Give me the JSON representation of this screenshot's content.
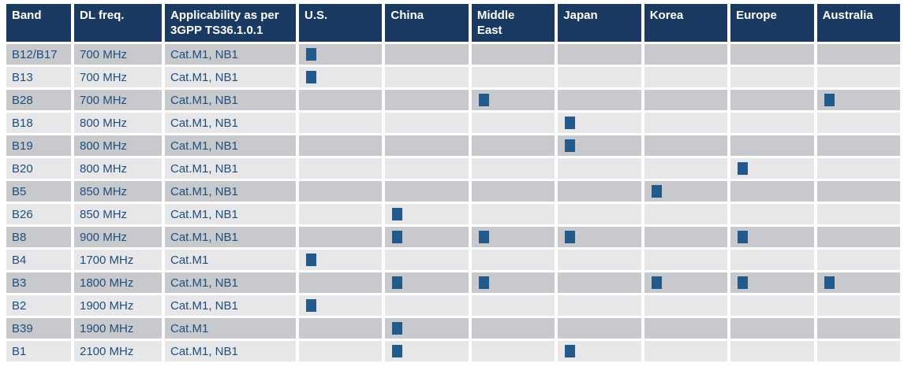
{
  "colors": {
    "header_bg": "#1a3a61",
    "marker": "#235a8c",
    "row_dark": "#c8c9cd",
    "row_light": "#e7e7e9",
    "body_text": "#1f4e7c",
    "page_bg": "#ffffff",
    "header_text": "#ffffff"
  },
  "table": {
    "columns": [
      {
        "key": "band",
        "label": "Band"
      },
      {
        "key": "dl_freq",
        "label": "DL freq."
      },
      {
        "key": "applicability",
        "label": "Applicability as per 3GPP TS36.1.0.1"
      },
      {
        "key": "us",
        "label": "U.S."
      },
      {
        "key": "china",
        "label": "China"
      },
      {
        "key": "middle_east",
        "label": "Middle East"
      },
      {
        "key": "japan",
        "label": "Japan"
      },
      {
        "key": "korea",
        "label": "Korea"
      },
      {
        "key": "europe",
        "label": "Europe"
      },
      {
        "key": "australia",
        "label": "Australia"
      }
    ],
    "region_keys": [
      "us",
      "china",
      "middle_east",
      "japan",
      "korea",
      "europe",
      "australia"
    ],
    "rows": [
      {
        "band": "B12/B17",
        "dl_freq": "700 MHz",
        "applicability": "Cat.M1, NB1",
        "regions": [
          "us"
        ]
      },
      {
        "band": "B13",
        "dl_freq": "700 MHz",
        "applicability": "Cat.M1, NB1",
        "regions": [
          "us"
        ]
      },
      {
        "band": "B28",
        "dl_freq": "700 MHz",
        "applicability": "Cat.M1, NB1",
        "regions": [
          "middle_east",
          "australia"
        ]
      },
      {
        "band": "B18",
        "dl_freq": "800 MHz",
        "applicability": "Cat.M1, NB1",
        "regions": [
          "japan"
        ]
      },
      {
        "band": "B19",
        "dl_freq": "800 MHz",
        "applicability": "Cat.M1, NB1",
        "regions": [
          "japan"
        ]
      },
      {
        "band": "B20",
        "dl_freq": "800 MHz",
        "applicability": "Cat.M1, NB1",
        "regions": [
          "europe"
        ]
      },
      {
        "band": "B5",
        "dl_freq": "850 MHz",
        "applicability": "Cat.M1, NB1",
        "regions": [
          "korea"
        ]
      },
      {
        "band": "B26",
        "dl_freq": "850 MHz",
        "applicability": "Cat.M1, NB1",
        "regions": [
          "china"
        ]
      },
      {
        "band": "B8",
        "dl_freq": "900 MHz",
        "applicability": "Cat.M1, NB1",
        "regions": [
          "china",
          "middle_east",
          "japan",
          "europe"
        ]
      },
      {
        "band": "B4",
        "dl_freq": "1700 MHz",
        "applicability": "Cat.M1",
        "regions": [
          "us"
        ]
      },
      {
        "band": "B3",
        "dl_freq": "1800 MHz",
        "applicability": "Cat.M1, NB1",
        "regions": [
          "china",
          "middle_east",
          "korea",
          "europe",
          "australia"
        ]
      },
      {
        "band": "B2",
        "dl_freq": "1900 MHz",
        "applicability": "Cat.M1, NB1",
        "regions": [
          "us"
        ]
      },
      {
        "band": "B39",
        "dl_freq": "1900 MHz",
        "applicability": "Cat.M1",
        "regions": [
          "china"
        ]
      },
      {
        "band": "B1",
        "dl_freq": "2100 MHz",
        "applicability": "Cat.M1, NB1",
        "regions": [
          "china",
          "japan"
        ]
      }
    ]
  }
}
